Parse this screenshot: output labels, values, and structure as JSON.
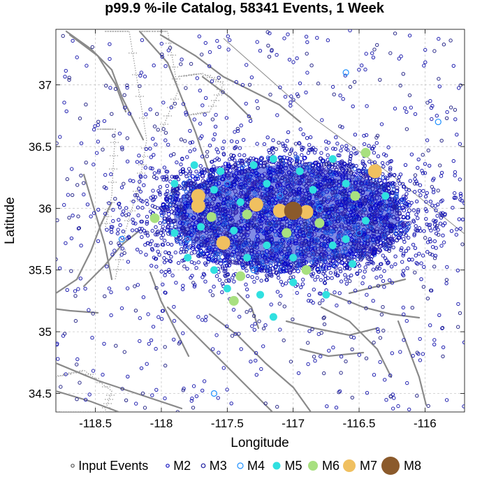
{
  "chart_data": {
    "type": "scatter",
    "title": "p99.9 %-ile Catalog, 58341 Events, 1 Week",
    "xlabel": "Longitude",
    "ylabel": "Latitude",
    "xlim": [
      -118.8,
      -115.7
    ],
    "ylim": [
      34.35,
      37.45
    ],
    "xticks": [
      -118.5,
      -118,
      -117.5,
      -117,
      -116.5,
      -116
    ],
    "xtick_labels": [
      "-118.5",
      "-118",
      "-117.5",
      "-117",
      "-116.5",
      "-116"
    ],
    "yticks": [
      34.5,
      35,
      35.5,
      36,
      36.5,
      37
    ],
    "ytick_labels": [
      "34.5",
      "35",
      "35.5",
      "36",
      "36.5",
      "37"
    ],
    "grid": true,
    "legend_position": "bottom",
    "legend": [
      "Input Events",
      "M2",
      "M3",
      "M4",
      "M5",
      "M6",
      "M7",
      "M8"
    ],
    "cluster": {
      "center": [
        -117.05,
        35.95
      ],
      "semi_axes_deg": [
        0.95,
        0.47
      ]
    },
    "series": [
      {
        "name": "M8",
        "color": "#8b5a2b",
        "points": [
          [
            -117.0,
            35.98
          ]
        ]
      },
      {
        "name": "M7",
        "color": "#f0c060",
        "points": [
          [
            -117.72,
            36.1
          ],
          [
            -117.72,
            36.02
          ],
          [
            -117.28,
            36.03
          ],
          [
            -117.1,
            35.98
          ],
          [
            -116.9,
            35.97
          ],
          [
            -116.38,
            36.3
          ],
          [
            -117.53,
            35.72
          ]
        ]
      },
      {
        "name": "M6",
        "color": "#a8e080",
        "points": [
          [
            -118.05,
            35.92
          ],
          [
            -117.62,
            35.93
          ],
          [
            -117.35,
            35.95
          ],
          [
            -117.05,
            35.8
          ],
          [
            -116.53,
            36.1
          ],
          [
            -116.8,
            35.88
          ],
          [
            -116.45,
            36.45
          ],
          [
            -117.4,
            35.45
          ],
          [
            -117.45,
            35.25
          ],
          [
            -116.9,
            35.5
          ]
        ]
      },
      {
        "name": "M5",
        "color": "#30e0e0",
        "points": [
          [
            -117.9,
            36.2
          ],
          [
            -117.6,
            36.15
          ],
          [
            -117.4,
            36.05
          ],
          [
            -117.2,
            36.2
          ],
          [
            -116.95,
            36.3
          ],
          [
            -116.7,
            36.4
          ],
          [
            -116.6,
            36.2
          ],
          [
            -116.45,
            35.9
          ],
          [
            -116.7,
            35.7
          ],
          [
            -117.0,
            35.6
          ],
          [
            -117.2,
            35.7
          ],
          [
            -117.35,
            35.6
          ],
          [
            -117.6,
            35.5
          ],
          [
            -117.8,
            35.6
          ],
          [
            -117.9,
            35.8
          ],
          [
            -117.7,
            35.85
          ],
          [
            -117.55,
            36.3
          ],
          [
            -117.15,
            36.4
          ],
          [
            -116.85,
            36.15
          ],
          [
            -116.55,
            35.55
          ],
          [
            -117.0,
            35.4
          ],
          [
            -117.25,
            35.3
          ],
          [
            -117.5,
            35.35
          ],
          [
            -117.15,
            35.12
          ],
          [
            -117.75,
            36.35
          ],
          [
            -116.6,
            35.75
          ],
          [
            -116.3,
            36.1
          ],
          [
            -117.3,
            36.35
          ],
          [
            -117.45,
            35.82
          ],
          [
            -116.75,
            35.3
          ]
        ]
      },
      {
        "name": "M4",
        "color": "#1e90ff",
        "points": [
          [
            -117.8,
            35.75
          ],
          [
            -117.5,
            36.2
          ],
          [
            -117.1,
            36.1
          ],
          [
            -116.8,
            36.0
          ],
          [
            -116.5,
            35.8
          ],
          [
            -117.3,
            35.5
          ],
          [
            -118.3,
            35.75
          ],
          [
            -115.9,
            36.7
          ],
          [
            -116.6,
            37.1
          ],
          [
            -117.6,
            34.5
          ]
        ]
      },
      {
        "name": "M3",
        "color": "#2020a0",
        "points": []
      },
      {
        "name": "M2",
        "color": "#1010c0",
        "points": []
      },
      {
        "name": "Input Events",
        "color": "#000000",
        "points": []
      }
    ]
  }
}
